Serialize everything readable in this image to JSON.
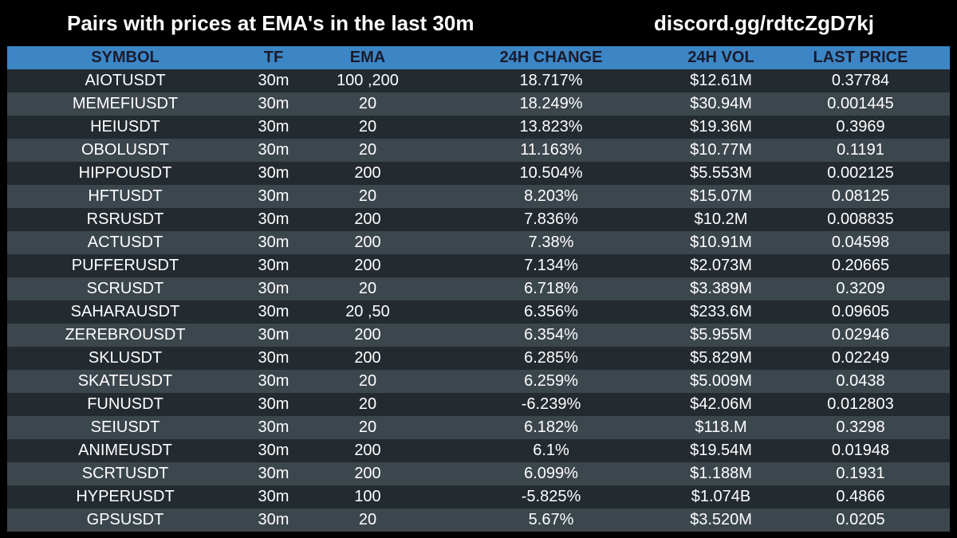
{
  "header": {
    "title": "Pairs with prices at EMA's in the last 30m",
    "discord": "discord.gg/rdtcZgD7kj"
  },
  "colors": {
    "background": "#000000",
    "header_row": "#3d86c6",
    "row_dark": "#232a30",
    "row_light": "#3c464d",
    "text": "#ffffff"
  },
  "table": {
    "columns": [
      "SYMBOL",
      "TF",
      "EMA",
      "24H CHANGE",
      "24H VOL",
      "LAST PRICE"
    ],
    "rows": [
      [
        "AIOTUSDT",
        "30m",
        "100 ,200",
        "18.717%",
        "$12.61M",
        "0.37784"
      ],
      [
        "MEMEFIUSDT",
        "30m",
        "20",
        "18.249%",
        "$30.94M",
        "0.001445"
      ],
      [
        "HEIUSDT",
        "30m",
        "20",
        "13.823%",
        "$19.36M",
        "0.3969"
      ],
      [
        "OBOLUSDT",
        "30m",
        "20",
        "11.163%",
        "$10.77M",
        "0.1191"
      ],
      [
        "HIPPOUSDT",
        "30m",
        "200",
        "10.504%",
        "$5.553M",
        "0.002125"
      ],
      [
        "HFTUSDT",
        "30m",
        "20",
        "8.203%",
        "$15.07M",
        "0.08125"
      ],
      [
        "RSRUSDT",
        "30m",
        "200",
        "7.836%",
        "$10.2M",
        "0.008835"
      ],
      [
        "ACTUSDT",
        "30m",
        "200",
        "7.38%",
        "$10.91M",
        "0.04598"
      ],
      [
        "PUFFERUSDT",
        "30m",
        "200",
        "7.134%",
        "$2.073M",
        "0.20665"
      ],
      [
        "SCRUSDT",
        "30m",
        "20",
        "6.718%",
        "$3.389M",
        "0.3209"
      ],
      [
        "SAHARAUSDT",
        "30m",
        "20 ,50",
        "6.356%",
        "$233.6M",
        "0.09605"
      ],
      [
        "ZEREBROUSDT",
        "30m",
        "200",
        "6.354%",
        "$5.955M",
        "0.02946"
      ],
      [
        "SKLUSDT",
        "30m",
        "200",
        "6.285%",
        "$5.829M",
        "0.02249"
      ],
      [
        "SKATEUSDT",
        "30m",
        "20",
        "6.259%",
        "$5.009M",
        "0.0438"
      ],
      [
        "FUNUSDT",
        "30m",
        "20",
        "-6.239%",
        "$42.06M",
        "0.012803"
      ],
      [
        "SEIUSDT",
        "30m",
        "20",
        "6.182%",
        "$118.M",
        "0.3298"
      ],
      [
        "ANIMEUSDT",
        "30m",
        "200",
        "6.1%",
        "$19.54M",
        "0.01948"
      ],
      [
        "SCRTUSDT",
        "30m",
        "200",
        "6.099%",
        "$1.188M",
        "0.1931"
      ],
      [
        "HYPERUSDT",
        "30m",
        "100",
        "-5.825%",
        "$1.074B",
        "0.4866"
      ],
      [
        "GPSUSDT",
        "30m",
        "20",
        "5.67%",
        "$3.520M",
        "0.0205"
      ]
    ]
  }
}
